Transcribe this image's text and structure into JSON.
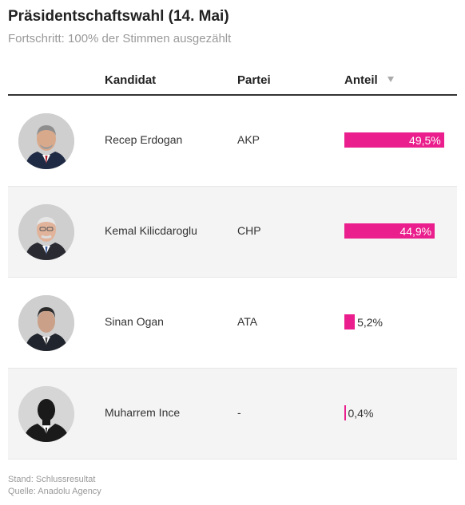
{
  "title": "Präsidentschaftswahl (14. Mai)",
  "subtitle": "Fortschritt: 100% der Stimmen ausgezählt",
  "table": {
    "columns": {
      "candidate": "Kandidat",
      "party": "Partei",
      "share": "Anteil"
    },
    "sort_icon": "sort-down-icon",
    "rows": [
      {
        "name": "Recep Erdogan",
        "party": "AKP",
        "share_label": "49,5%",
        "share": 49.5,
        "photo": "erdogan-photo"
      },
      {
        "name": "Kemal Kilicdaroglu",
        "party": "CHP",
        "share_label": "44,9%",
        "share": 44.9,
        "photo": "kilicdaroglu-photo"
      },
      {
        "name": "Sinan Ogan",
        "party": "ATA",
        "share_label": "5,2%",
        "share": 5.2,
        "photo": "ogan-photo"
      },
      {
        "name": "Muharrem Ince",
        "party": "-",
        "share_label": "0,4%",
        "share": 0.4,
        "photo": "placeholder-silhouette"
      }
    ]
  },
  "colors": {
    "bar": "#ea1e8c",
    "row_alt": "#f4f4f4"
  },
  "footer": {
    "status": "Stand: Schlussresultat",
    "source": "Quelle: Anadolu Agency"
  }
}
